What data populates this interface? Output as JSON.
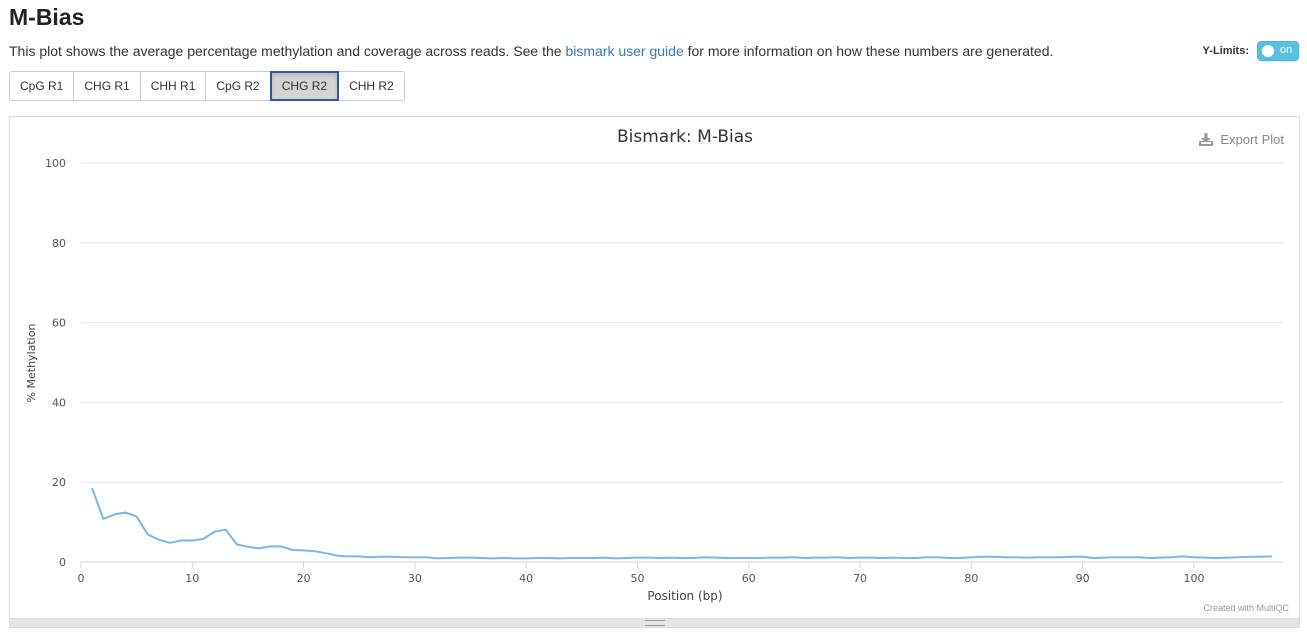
{
  "header": {
    "title": "M-Bias",
    "desc_before": "This plot shows the average percentage methylation and coverage across reads. See the ",
    "desc_link": "bismark user guide",
    "desc_after": " for more information on how these numbers are generated."
  },
  "ylimits": {
    "label": "Y-Limits:",
    "state": "on"
  },
  "tabs": [
    {
      "label": "CpG R1",
      "active": false
    },
    {
      "label": "CHG R1",
      "active": false
    },
    {
      "label": "CHH R1",
      "active": false
    },
    {
      "label": "CpG R2",
      "active": false
    },
    {
      "label": "CHG R2",
      "active": true
    },
    {
      "label": "CHH R2",
      "active": false
    }
  ],
  "export_label": "Export Plot",
  "credits": "Created with MultiQC",
  "colors": {
    "series": "#7cb5ec",
    "toggle": "#5bc0de"
  },
  "chart_data": {
    "type": "line",
    "title": "Bismark: M-Bias",
    "xlabel": "Position (bp)",
    "ylabel": "% Methylation",
    "xlim": [
      0,
      108
    ],
    "ylim": [
      0,
      100
    ],
    "xticks": [
      0,
      10,
      20,
      30,
      40,
      50,
      60,
      70,
      80,
      90,
      100
    ],
    "yticks": [
      0,
      20,
      40,
      60,
      80,
      100
    ],
    "grid": true,
    "legend": "none",
    "series": [
      {
        "x": [
          1,
          2,
          3,
          4,
          5,
          6,
          7,
          8,
          9,
          10,
          11,
          12,
          13,
          14,
          15,
          16,
          17,
          18,
          19,
          20,
          21,
          22,
          23,
          24,
          25,
          26,
          27,
          28,
          29,
          30,
          31,
          32,
          33,
          34,
          35,
          36,
          37,
          38,
          39,
          40,
          41,
          42,
          43,
          44,
          45,
          46,
          47,
          48,
          49,
          50,
          51,
          52,
          53,
          54,
          55,
          56,
          57,
          58,
          59,
          60,
          61,
          62,
          63,
          64,
          65,
          66,
          67,
          68,
          69,
          70,
          71,
          72,
          73,
          74,
          75,
          76,
          77,
          78,
          79,
          80,
          81,
          82,
          83,
          84,
          85,
          86,
          87,
          88,
          89,
          90,
          91,
          92,
          93,
          94,
          95,
          96,
          97,
          98,
          99,
          100,
          101,
          102,
          103,
          104,
          105,
          106,
          107
        ],
        "values": [
          18.5,
          10.8,
          11.9,
          12.4,
          11.4,
          6.9,
          5.6,
          4.8,
          5.4,
          5.4,
          5.8,
          7.6,
          8.1,
          4.4,
          3.8,
          3.4,
          3.9,
          3.9,
          3.0,
          2.9,
          2.7,
          2.2,
          1.6,
          1.4,
          1.4,
          1.2,
          1.3,
          1.3,
          1.2,
          1.2,
          1.2,
          0.9,
          1.0,
          1.1,
          1.1,
          1.0,
          0.9,
          1.0,
          0.9,
          0.9,
          1.0,
          1.0,
          0.9,
          1.0,
          1.0,
          1.0,
          1.1,
          0.9,
          1.0,
          1.1,
          1.1,
          1.0,
          1.1,
          1.0,
          1.0,
          1.2,
          1.1,
          1.0,
          1.0,
          1.0,
          1.0,
          1.1,
          1.1,
          1.2,
          1.0,
          1.1,
          1.1,
          1.2,
          1.0,
          1.1,
          1.1,
          1.0,
          1.1,
          1.0,
          1.0,
          1.2,
          1.2,
          1.0,
          1.0,
          1.2,
          1.3,
          1.3,
          1.2,
          1.2,
          1.1,
          1.2,
          1.2,
          1.2,
          1.3,
          1.3,
          1.0,
          1.1,
          1.2,
          1.2,
          1.2,
          1.0,
          1.1,
          1.2,
          1.4,
          1.2,
          1.1,
          1.0,
          1.1,
          1.2,
          1.3,
          1.3,
          1.4
        ]
      }
    ]
  }
}
